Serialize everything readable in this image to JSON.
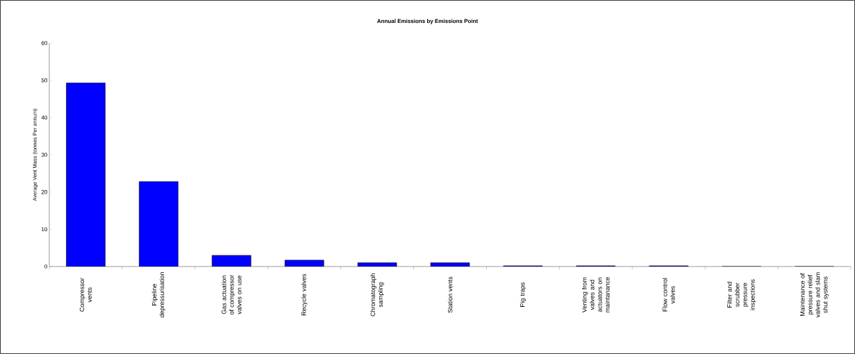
{
  "chart_data": {
    "type": "bar",
    "title": "Annual Emissions by Emissions Point",
    "ylabel": "Average Vent Mass (tonnes Per annum)",
    "categories": [
      "Compressor vents",
      "Pipeline depressurisation",
      "Gas actuation of compressor valves on use",
      "Recycle valves",
      "Chromatograph sampling",
      "Station vents",
      "Pig traps",
      "Venting from valves and actuators on maintanance",
      "Flow control valves",
      "Filter and scrubber pressure inspections",
      "Maintenance of pressure relief valves and slam shut systems"
    ],
    "values": [
      49.3,
      22.8,
      3.0,
      1.7,
      1.0,
      1.0,
      0.2,
      0.2,
      0.2,
      0,
      0
    ],
    "color": "#0000ff",
    "ylim": [
      0,
      60
    ],
    "yticks": [
      0,
      10,
      20,
      30,
      40,
      50,
      60
    ],
    "grid": false
  }
}
